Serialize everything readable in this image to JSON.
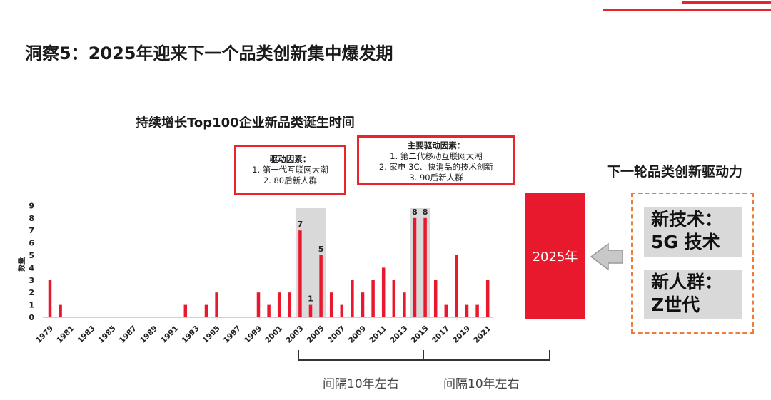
{
  "page": {
    "title": "洞察5：2025年迎来下一个品类创新集中爆发期",
    "accent_color": "#e8252a"
  },
  "chart_data": {
    "type": "bar",
    "title": "持续增长Top100企业新品类诞生时间",
    "ylabel": "数量",
    "xlabel": "",
    "ylim": [
      0,
      9
    ],
    "yticks": [
      0,
      1,
      2,
      3,
      4,
      5,
      6,
      7,
      8,
      9
    ],
    "grid": false,
    "bar_color": "#e8192c",
    "categories": [
      "1979",
      "1980",
      "1981",
      "1982",
      "1983",
      "1984",
      "1985",
      "1986",
      "1987",
      "1988",
      "1989",
      "1990",
      "1991",
      "1992",
      "1993",
      "1994",
      "1995",
      "1996",
      "1997",
      "1998",
      "1999",
      "2000",
      "2001",
      "2002",
      "2003",
      "2004",
      "2005",
      "2006",
      "2007",
      "2008",
      "2009",
      "2010",
      "2011",
      "2012",
      "2013",
      "2014",
      "2015",
      "2016",
      "2017",
      "2018",
      "2019",
      "2020",
      "2021"
    ],
    "xtick_labels": [
      "1979",
      "1981",
      "1983",
      "1985",
      "1987",
      "1989",
      "1991",
      "1993",
      "1995",
      "1997",
      "1999",
      "2001",
      "2003",
      "2005",
      "2007",
      "2009",
      "2011",
      "2013",
      "2015",
      "2017",
      "2019",
      "2021"
    ],
    "values": [
      3,
      1,
      0,
      0,
      0,
      0,
      0,
      0,
      0,
      0,
      0,
      0,
      0,
      1,
      0,
      1,
      2,
      0,
      0,
      0,
      2,
      1,
      2,
      2,
      7,
      1,
      5,
      2,
      1,
      3,
      2,
      3,
      4,
      3,
      2,
      8,
      8,
      3,
      1,
      5,
      1,
      1,
      3
    ],
    "data_labels": [
      {
        "category": "2003",
        "text": "7"
      },
      {
        "category": "2004",
        "text": "1"
      },
      {
        "category": "2005",
        "text": "5"
      },
      {
        "category": "2014",
        "text": "8"
      },
      {
        "category": "2015",
        "text": "8"
      }
    ],
    "highlight_ranges": [
      [
        "2003",
        "2005"
      ],
      [
        "2014",
        "2015"
      ]
    ],
    "annotations": [
      {
        "heading": "驱动因素：",
        "lines": [
          "1. 第一代互联网大潮",
          "2. 80后新人群"
        ]
      },
      {
        "heading": "主要驱动因素：",
        "lines": [
          "1. 第二代移动互联网大潮",
          "2. 家电 3C、快消品的技术创新",
          "3. 90后新人群"
        ]
      }
    ],
    "intervals": [
      "间隔10年左右",
      "间隔10年左右"
    ],
    "future_label": "2025年"
  },
  "drivers": {
    "title": "下一轮品类创新驱动力",
    "items": [
      {
        "line1": "新技术：",
        "line2": "5G 技术"
      },
      {
        "line1": "新人群：",
        "line2": "Z世代"
      }
    ]
  }
}
